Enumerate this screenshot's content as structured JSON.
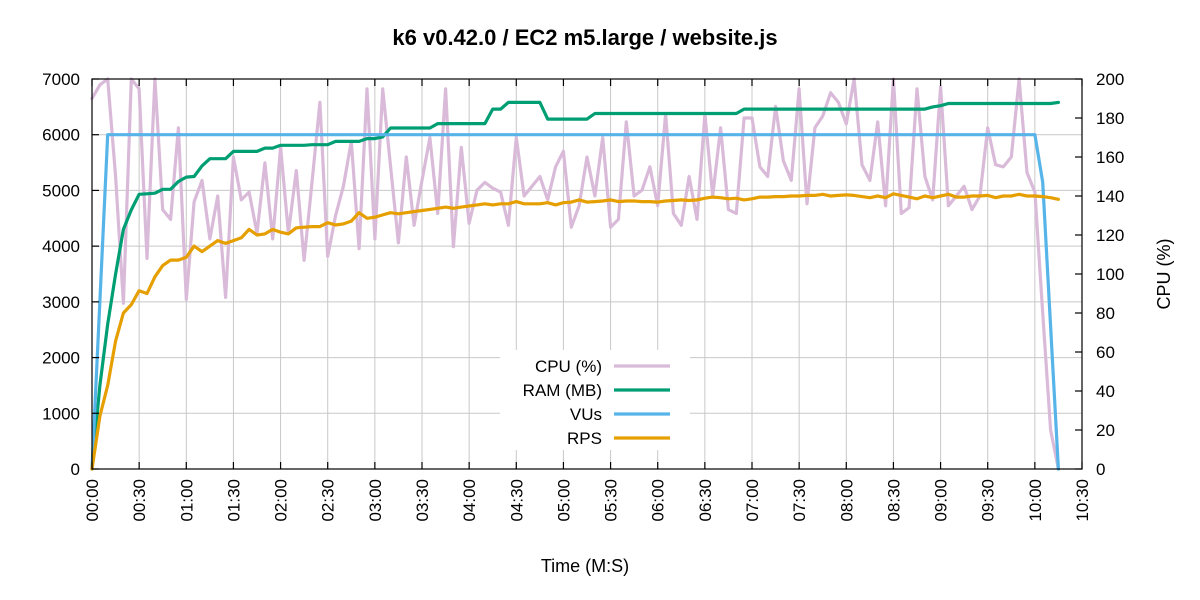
{
  "chart_data": {
    "type": "line",
    "title": "k6 v0.42.0 / EC2 m5.large / website.js",
    "xlabel": "Time (M:S)",
    "ylabel": "",
    "y2label": "CPU (%)",
    "xlim": [
      0,
      630
    ],
    "ylim": [
      0,
      7000
    ],
    "y2lim": [
      0,
      200
    ],
    "x_ticks": [
      0,
      30,
      60,
      90,
      120,
      150,
      180,
      210,
      240,
      270,
      300,
      330,
      360,
      390,
      420,
      450,
      480,
      510,
      540,
      570,
      600,
      630
    ],
    "x_tick_labels": [
      "00:00",
      "00:30",
      "01:00",
      "01:30",
      "02:00",
      "02:30",
      "03:00",
      "03:30",
      "04:00",
      "04:30",
      "05:00",
      "05:30",
      "06:00",
      "06:30",
      "07:00",
      "07:30",
      "08:00",
      "08:30",
      "09:00",
      "09:30",
      "10:00",
      "10:30"
    ],
    "y_ticks": [
      0,
      1000,
      2000,
      3000,
      4000,
      5000,
      6000,
      7000
    ],
    "y_tick_labels": [
      "0",
      "1000",
      "2000",
      "3000",
      "4000",
      "5000",
      "6000",
      "7000"
    ],
    "y2_ticks": [
      0,
      20,
      40,
      60,
      80,
      100,
      120,
      140,
      160,
      180,
      200
    ],
    "y2_tick_labels": [
      "0",
      "20",
      "40",
      "60",
      "80",
      "100",
      "120",
      "140",
      "160",
      "180",
      "200"
    ],
    "grid": true,
    "legend_position": "center-bottom",
    "series": [
      {
        "name": "CPU (%)",
        "axis": "right",
        "color": "#d9bbd9",
        "x": [
          0,
          5,
          10,
          15,
          20,
          25,
          30,
          35,
          40,
          45,
          50,
          55,
          60,
          65,
          70,
          75,
          80,
          85,
          90,
          95,
          100,
          105,
          110,
          115,
          120,
          125,
          130,
          135,
          140,
          145,
          150,
          155,
          160,
          165,
          170,
          175,
          180,
          185,
          190,
          195,
          200,
          205,
          210,
          215,
          220,
          225,
          230,
          235,
          240,
          245,
          250,
          255,
          260,
          265,
          270,
          275,
          280,
          285,
          290,
          295,
          300,
          305,
          310,
          315,
          320,
          325,
          330,
          335,
          340,
          345,
          350,
          355,
          360,
          365,
          370,
          375,
          380,
          385,
          390,
          395,
          400,
          405,
          410,
          415,
          420,
          425,
          430,
          435,
          440,
          445,
          450,
          455,
          460,
          465,
          470,
          475,
          480,
          485,
          490,
          495,
          500,
          505,
          510,
          515,
          520,
          525,
          530,
          535,
          540,
          545,
          550,
          555,
          560,
          565,
          570,
          575,
          580,
          585,
          590,
          595,
          600,
          605,
          610,
          615
        ],
        "values": [
          190,
          197,
          200,
          150,
          85,
          200,
          195,
          108,
          200,
          133,
          128,
          175,
          87,
          137,
          148,
          118,
          140,
          88,
          160,
          138,
          142,
          121,
          157,
          118,
          165,
          121,
          153,
          107,
          147,
          188,
          109,
          130,
          145,
          168,
          113,
          195,
          118,
          195,
          155,
          116,
          160,
          125,
          148,
          170,
          131,
          195,
          114,
          165,
          126,
          143,
          147,
          144,
          142,
          125,
          170,
          140,
          145,
          150,
          138,
          155,
          163,
          124,
          135,
          160,
          140,
          170,
          124,
          128,
          178,
          140,
          143,
          155,
          135,
          182,
          131,
          125,
          150,
          128,
          182,
          140,
          175,
          133,
          131,
          180,
          180,
          155,
          150,
          186,
          158,
          148,
          195,
          136,
          175,
          181,
          193,
          188,
          177,
          200,
          156,
          148,
          178,
          135,
          200,
          131,
          134,
          195,
          150,
          138,
          196,
          135,
          140,
          145,
          133,
          140,
          175,
          156,
          155,
          160,
          200,
          152,
          142,
          80,
          20,
          0
        ]
      },
      {
        "name": "RAM (MB)",
        "axis": "left",
        "color": "#009e73",
        "x": [
          0,
          5,
          10,
          15,
          20,
          25,
          30,
          35,
          40,
          45,
          50,
          55,
          60,
          65,
          70,
          75,
          80,
          85,
          90,
          95,
          100,
          105,
          110,
          115,
          120,
          125,
          130,
          135,
          140,
          145,
          150,
          155,
          160,
          165,
          170,
          175,
          180,
          185,
          190,
          195,
          200,
          205,
          210,
          215,
          220,
          225,
          230,
          235,
          240,
          245,
          250,
          255,
          260,
          265,
          270,
          275,
          280,
          285,
          290,
          295,
          300,
          305,
          310,
          315,
          320,
          325,
          330,
          335,
          340,
          345,
          350,
          355,
          360,
          365,
          370,
          375,
          380,
          385,
          390,
          395,
          400,
          405,
          410,
          415,
          420,
          425,
          430,
          435,
          440,
          445,
          450,
          455,
          460,
          465,
          470,
          475,
          480,
          485,
          490,
          495,
          500,
          505,
          510,
          515,
          520,
          525,
          530,
          535,
          540,
          545,
          550,
          555,
          560,
          565,
          570,
          575,
          580,
          585,
          590,
          595,
          600,
          605,
          610,
          615
        ],
        "values": [
          0,
          1500,
          2600,
          3500,
          4300,
          4650,
          4930,
          4940,
          4950,
          5020,
          5020,
          5160,
          5240,
          5250,
          5440,
          5570,
          5570,
          5570,
          5700,
          5700,
          5700,
          5700,
          5760,
          5760,
          5810,
          5810,
          5810,
          5810,
          5820,
          5820,
          5820,
          5880,
          5880,
          5880,
          5880,
          5930,
          5930,
          5960,
          6120,
          6120,
          6120,
          6120,
          6120,
          6120,
          6200,
          6200,
          6200,
          6200,
          6200,
          6200,
          6200,
          6460,
          6460,
          6580,
          6580,
          6580,
          6580,
          6580,
          6280,
          6280,
          6280,
          6280,
          6280,
          6280,
          6380,
          6380,
          6380,
          6380,
          6380,
          6380,
          6380,
          6380,
          6380,
          6380,
          6380,
          6380,
          6380,
          6380,
          6380,
          6380,
          6380,
          6380,
          6380,
          6460,
          6460,
          6460,
          6460,
          6460,
          6460,
          6460,
          6460,
          6460,
          6460,
          6460,
          6460,
          6460,
          6460,
          6460,
          6460,
          6460,
          6460,
          6460,
          6460,
          6460,
          6460,
          6460,
          6460,
          6500,
          6520,
          6560,
          6560,
          6560,
          6560,
          6560,
          6560,
          6560,
          6560,
          6560,
          6560,
          6560,
          6560,
          6560,
          6560,
          6580
        ]
      },
      {
        "name": "VUs",
        "axis": "left",
        "color": "#56b4e9",
        "x": [
          0,
          10,
          600,
          605,
          615
        ],
        "values": [
          0,
          6000,
          6000,
          5150,
          0
        ]
      },
      {
        "name": "RPS",
        "axis": "left",
        "color": "#e69f00",
        "x": [
          0,
          5,
          10,
          15,
          20,
          25,
          30,
          35,
          40,
          45,
          50,
          55,
          60,
          65,
          70,
          75,
          80,
          85,
          90,
          95,
          100,
          105,
          110,
          115,
          120,
          125,
          130,
          135,
          140,
          145,
          150,
          155,
          160,
          165,
          170,
          175,
          180,
          185,
          190,
          195,
          200,
          205,
          210,
          215,
          220,
          225,
          230,
          235,
          240,
          245,
          250,
          255,
          260,
          265,
          270,
          275,
          280,
          285,
          290,
          295,
          300,
          305,
          310,
          315,
          320,
          325,
          330,
          335,
          340,
          345,
          350,
          355,
          360,
          365,
          370,
          375,
          380,
          385,
          390,
          395,
          400,
          405,
          410,
          415,
          420,
          425,
          430,
          435,
          440,
          445,
          450,
          455,
          460,
          465,
          470,
          475,
          480,
          485,
          490,
          495,
          500,
          505,
          510,
          515,
          520,
          525,
          530,
          535,
          540,
          545,
          550,
          555,
          560,
          565,
          570,
          575,
          580,
          585,
          590,
          595,
          600,
          605,
          610,
          615
        ],
        "values": [
          0,
          950,
          1500,
          2300,
          2800,
          2950,
          3200,
          3150,
          3450,
          3650,
          3750,
          3750,
          3800,
          4000,
          3900,
          4000,
          4100,
          4050,
          4100,
          4150,
          4300,
          4200,
          4220,
          4300,
          4250,
          4220,
          4330,
          4340,
          4350,
          4350,
          4420,
          4380,
          4400,
          4450,
          4600,
          4500,
          4520,
          4560,
          4600,
          4580,
          4600,
          4620,
          4640,
          4660,
          4680,
          4700,
          4680,
          4700,
          4720,
          4740,
          4760,
          4740,
          4760,
          4760,
          4800,
          4760,
          4760,
          4760,
          4780,
          4740,
          4780,
          4790,
          4830,
          4790,
          4800,
          4810,
          4830,
          4800,
          4810,
          4810,
          4800,
          4800,
          4790,
          4810,
          4820,
          4830,
          4820,
          4830,
          4860,
          4880,
          4870,
          4850,
          4860,
          4830,
          4850,
          4880,
          4880,
          4890,
          4890,
          4900,
          4900,
          4910,
          4910,
          4930,
          4900,
          4910,
          4920,
          4910,
          4890,
          4870,
          4900,
          4870,
          4940,
          4910,
          4880,
          4850,
          4900,
          4870,
          4900,
          4930,
          4880,
          4880,
          4900,
          4900,
          4910,
          4870,
          4900,
          4900,
          4930,
          4900,
          4900,
          4890,
          4870,
          4840
        ]
      }
    ]
  }
}
